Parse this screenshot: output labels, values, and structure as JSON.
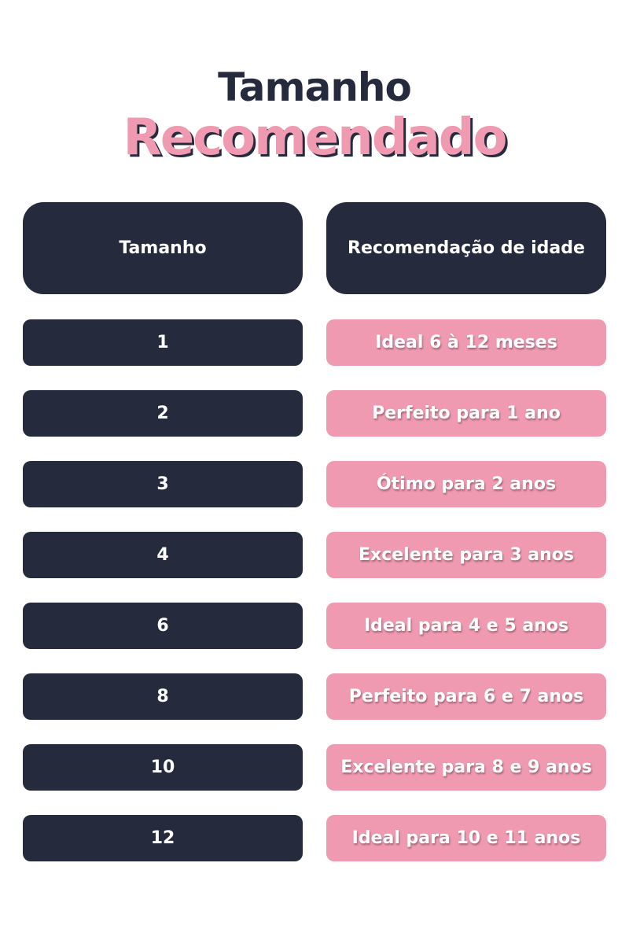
{
  "title": {
    "line1": "Tamanho",
    "line2": "Recomendado"
  },
  "colors": {
    "dark": "#262a3d",
    "pink": "#f09ab2"
  },
  "table": {
    "headers": [
      "Tamanho",
      "Recomendação de idade"
    ],
    "rows": [
      {
        "size": "1",
        "age": "Ideal 6 à 12 meses"
      },
      {
        "size": "2",
        "age": "Perfeito para 1 ano"
      },
      {
        "size": "3",
        "age": "Ótimo para 2 anos"
      },
      {
        "size": "4",
        "age": "Excelente para 3 anos"
      },
      {
        "size": "6",
        "age": "Ideal para 4 e 5 anos"
      },
      {
        "size": "8",
        "age": "Perfeito para 6 e 7 anos"
      },
      {
        "size": "10",
        "age": "Excelente para 8 e 9 anos"
      },
      {
        "size": "12",
        "age": "Ideal para 10 e 11 anos"
      }
    ]
  }
}
